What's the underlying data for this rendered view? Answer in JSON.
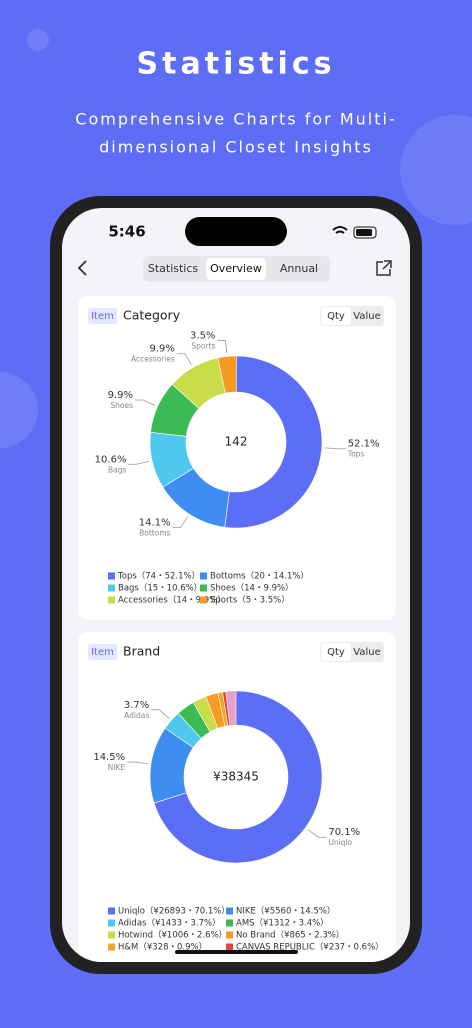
{
  "header": {
    "title": "Statistics",
    "subtitle_lines": [
      "Comprehensive Charts for Multi-",
      "dimensional Closet Insights"
    ]
  },
  "status": {
    "time": "5:46"
  },
  "tabs": {
    "items": [
      "Statistics",
      "Overview",
      "Annual"
    ],
    "selected": 1
  },
  "cards": [
    {
      "tag": "Item",
      "title": "Category",
      "toggle": [
        "Qty",
        "Value"
      ],
      "center": "142",
      "chart": {
        "type": "pie",
        "categories": [
          "Tops",
          "Bottoms",
          "Bags",
          "Shoes",
          "Accessories",
          "Sports"
        ],
        "values": [
          52.1,
          14.1,
          10.6,
          9.9,
          9.9,
          3.5
        ],
        "value_labels": [
          "52.1%",
          "14.1%",
          "10.6%",
          "9.9%",
          "9.9%",
          "3.5%"
        ],
        "colors": [
          "#5b6ef5",
          "#3d8ef0",
          "#4fc8ef",
          "#3cba54",
          "#c9dc4a",
          "#f59a23"
        ],
        "legend": [
          "Tops（74・52.1%）",
          "Bottoms（20・14.1%）",
          "Bags（15・10.6%）",
          "Shoes（14・9.9%）",
          "Accessories（14・9.9%）",
          "Sports（5・3.5%）"
        ]
      }
    },
    {
      "tag": "Item",
      "title": "Brand",
      "toggle": [
        "Qty",
        "Value"
      ],
      "center": "¥38345",
      "chart": {
        "type": "pie",
        "categories": [
          "Uniqlo",
          "NIKE",
          "Adidas",
          "AMS",
          "Hotwind",
          "No Brand",
          "H&M",
          "CANVAS REPUBLIC"
        ],
        "values": [
          70.1,
          14.5,
          3.7,
          3.4,
          2.6,
          2.3,
          0.9,
          0.6
        ],
        "value_labels": [
          "70.1%",
          "14.5%",
          "3.7%",
          null,
          null,
          null,
          null,
          null
        ],
        "colors": [
          "#5b6ef5",
          "#3d8ef0",
          "#4fc8ef",
          "#3cba54",
          "#c9dc4a",
          "#f59a23",
          "#f5a623",
          "#e8443a"
        ],
        "legend": [
          "Uniqlo（¥26893・70.1%）",
          "NIKE（¥5560・14.5%）",
          "Adidas（¥1433・3.7%）",
          "AMS（¥1312・3.4%）",
          "Hotwind（¥1006・2.6%）",
          "No Brand（¥865・2.3%）",
          "H&M（¥328・0.9%）",
          "CANVAS REPUBLIC（¥237・0.6%）"
        ]
      }
    }
  ]
}
